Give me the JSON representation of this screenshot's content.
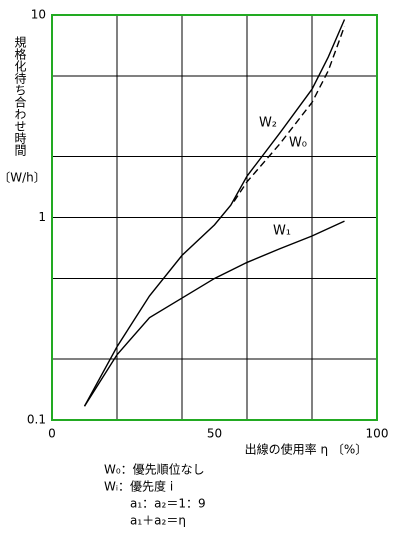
{
  "chart_data": {
    "type": "line",
    "ylabel": "規格化待ち合わせ時間",
    "ylabel_unit": "〔W/h〕",
    "xlabel": "出線の使用率 η 〔%〕",
    "xlim": [
      0,
      100
    ],
    "xticks": [
      0,
      50,
      100
    ],
    "xgrid": [
      20,
      40,
      60,
      80
    ],
    "ylim": [
      0.1,
      10
    ],
    "yticks": [
      0.1,
      1,
      10
    ],
    "ygrid": [
      0.2,
      0.5,
      2,
      5
    ],
    "ylog": true,
    "frame_color": "#22aa22",
    "series": [
      {
        "name": "W₂",
        "color": "#000000",
        "dash": false,
        "x": [
          10,
          20,
          30,
          40,
          50,
          55,
          60,
          70,
          80,
          85,
          90
        ],
        "values": [
          0.117,
          0.23,
          0.41,
          0.65,
          0.92,
          1.15,
          1.6,
          2.6,
          4.3,
          6.2,
          9.5
        ]
      },
      {
        "name": "W₀",
        "color": "#000000",
        "dash": true,
        "x": [
          56,
          60,
          70,
          80,
          85,
          90
        ],
        "values": [
          1.2,
          1.5,
          2.3,
          3.7,
          5.3,
          8.8
        ]
      },
      {
        "name": "W₁",
        "color": "#000000",
        "dash": false,
        "x": [
          10,
          20,
          30,
          40,
          50,
          60,
          70,
          80,
          90
        ],
        "values": [
          0.117,
          0.21,
          0.32,
          0.4,
          0.5,
          0.6,
          0.7,
          0.81,
          0.96
        ]
      }
    ],
    "notes": [
      "W₀：優先順位なし",
      "Wᵢ：優先度 i",
      "a₁：a₂＝1：9",
      "a₁＋a₂＝η"
    ]
  }
}
